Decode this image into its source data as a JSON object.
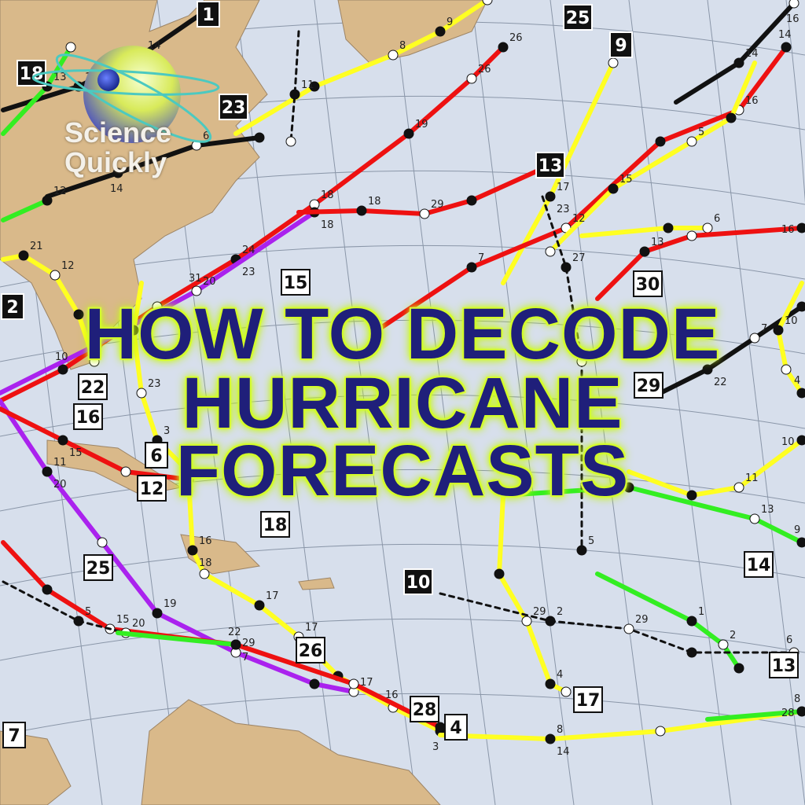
{
  "title": {
    "line1": "HOW TO DECODE",
    "line2": "HURRICANE",
    "line3": "FORECASTS"
  },
  "logo": {
    "line1": "Science",
    "line2": "Quickly"
  },
  "colors": {
    "ocean": "#d7dfec",
    "land": "#d9b98a",
    "title": "#1f1f7a",
    "glow": "#d4ff2a",
    "tropical_depression": "#33ee22",
    "tropical_storm": "#ffff22",
    "hurricane": "#ee1111",
    "major_hurricane": "#aa22ee",
    "extratropical": "#111111"
  },
  "storm_labels": {
    "black": [
      "1",
      "25",
      "9",
      "18",
      "23",
      "13",
      "10",
      "2"
    ],
    "white": [
      "22",
      "16",
      "6",
      "12",
      "18",
      "25",
      "26",
      "28",
      "4",
      "17",
      "13",
      "14",
      "29",
      "30",
      "15",
      "7"
    ]
  },
  "date_labels": [
    "10",
    "18",
    "26",
    "18",
    "9",
    "29",
    "17",
    "12",
    "14",
    "13",
    "11",
    "7",
    "16",
    "15",
    "6",
    "14",
    "13",
    "12",
    "11",
    "29",
    "15",
    "16",
    "17",
    "3",
    "7",
    "8",
    "8",
    "9",
    "10",
    "4",
    "2",
    "29",
    "27",
    "10",
    "23",
    "5",
    "22",
    "24",
    "26",
    "20",
    "8",
    "18",
    "23",
    "7",
    "16",
    "6",
    "16",
    "22",
    "14",
    "5",
    "14",
    "13",
    "12",
    "21",
    "20",
    "19",
    "17",
    "18",
    "17",
    "16",
    "15",
    "14",
    "28",
    "13",
    "11",
    "29",
    "1",
    "2",
    "6",
    "5",
    "4",
    "3",
    "20",
    "23",
    "19",
    "31"
  ]
}
